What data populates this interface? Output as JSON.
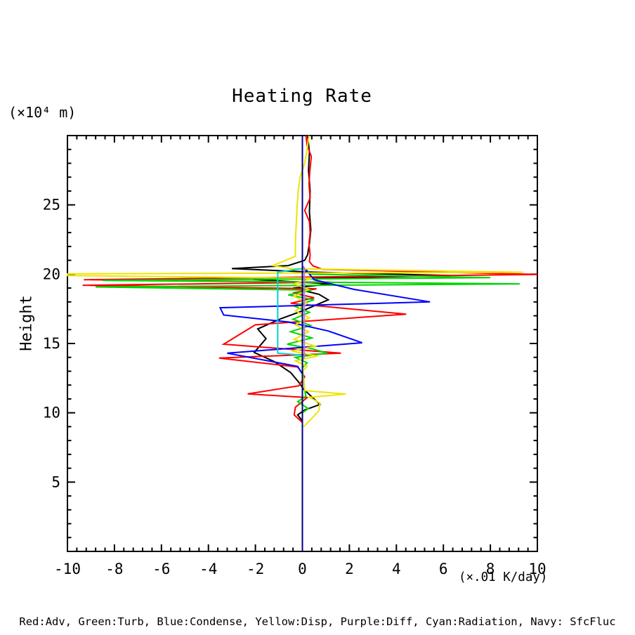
{
  "title": "Heating Rate",
  "axes": {
    "y_unit_label": "(×10⁴ m)",
    "y_axis_title": "Height",
    "x_unit_label": "(×.01 K/day)",
    "x_ticks": [
      -10,
      -8,
      -6,
      -4,
      -2,
      0,
      2,
      4,
      6,
      8,
      10
    ],
    "y_ticks": [
      5,
      10,
      15,
      20,
      25
    ],
    "x_range": [
      -10,
      10
    ],
    "y_range": [
      0,
      30
    ],
    "x_minor_step": 0.4,
    "y_minor_step": 1
  },
  "legend_caption": "Red:Adv, Green:Turb, Blue:Condense, Yellow:Disp, Purple:Diff, Cyan:Radiation, Navy: SfcFluc",
  "chart_data": {
    "type": "line",
    "title": "Heating Rate",
    "xlabel": "(×.01 K/day)",
    "ylabel": "Height (×10⁴ m)",
    "xlim": [
      -10,
      10
    ],
    "ylim": [
      0,
      30
    ],
    "grid": false,
    "legend_position": "bottom caption",
    "orientation": "vertical profile: x = heating rate value, y = height",
    "series": [
      {
        "name": "black",
        "color": "#000000",
        "points": [
          [
            0.22,
            30
          ],
          [
            0.3,
            28.8
          ],
          [
            0.26,
            27.5
          ],
          [
            0.33,
            26
          ],
          [
            0.3,
            24.5
          ],
          [
            0.36,
            23.2
          ],
          [
            0.3,
            22.2
          ],
          [
            0.22,
            21.4
          ],
          [
            0.1,
            21.0
          ],
          [
            -0.6,
            20.62
          ],
          [
            -3.0,
            20.4
          ],
          [
            0.4,
            20.15
          ],
          [
            6.3,
            19.9
          ],
          [
            -2.1,
            19.62
          ],
          [
            1.2,
            19.3
          ],
          [
            -0.4,
            19.0
          ],
          [
            0.7,
            18.55
          ],
          [
            1.1,
            18.15
          ],
          [
            0.0,
            17.35
          ],
          [
            -0.9,
            16.8
          ],
          [
            -1.9,
            16.05
          ],
          [
            -1.55,
            15.35
          ],
          [
            -2.05,
            14.35
          ],
          [
            -1.2,
            13.7
          ],
          [
            -0.5,
            12.9
          ],
          [
            -0.15,
            12.2
          ],
          [
            0.05,
            11.7
          ],
          [
            0.75,
            10.6
          ],
          [
            0.1,
            10.2
          ],
          [
            -0.2,
            9.85
          ],
          [
            0,
            9.4
          ]
        ]
      },
      {
        "name": "Adv",
        "color": "#ff0000",
        "points": [
          [
            0.15,
            30
          ],
          [
            0.2,
            29.3
          ],
          [
            0.38,
            28.5
          ],
          [
            0.32,
            27.5
          ],
          [
            0.28,
            26.5
          ],
          [
            0.33,
            25.5
          ],
          [
            0.1,
            24.6
          ],
          [
            0.3,
            23.8
          ],
          [
            0.33,
            23
          ],
          [
            0.28,
            22.2
          ],
          [
            0.33,
            21.4
          ],
          [
            0.3,
            20.9
          ],
          [
            0.45,
            20.6
          ],
          [
            0.85,
            20.35
          ],
          [
            10,
            19.98
          ],
          [
            -9.3,
            19.6
          ],
          [
            1.2,
            19.42
          ],
          [
            -9.35,
            19.2
          ],
          [
            0.6,
            18.95
          ],
          [
            -0.4,
            18.65
          ],
          [
            0.5,
            18.3
          ],
          [
            -0.5,
            17.9
          ],
          [
            4.42,
            17.12
          ],
          [
            -2.0,
            16.35
          ],
          [
            -3.35,
            14.95
          ],
          [
            1.64,
            14.3
          ],
          [
            -3.55,
            13.95
          ],
          [
            -0.2,
            13.3
          ],
          [
            0.1,
            12.6
          ],
          [
            -0.15,
            11.95
          ],
          [
            -2.33,
            11.36
          ],
          [
            0.2,
            11.1
          ],
          [
            -0.3,
            10.4
          ],
          [
            -0.35,
            9.85
          ],
          [
            0,
            9.3
          ]
        ]
      },
      {
        "name": "Turb",
        "color": "#00d400",
        "points": [
          [
            0.2,
            20.3
          ],
          [
            0.3,
            20.0
          ],
          [
            8.0,
            19.75
          ],
          [
            -8.5,
            19.55
          ],
          [
            9.25,
            19.3
          ],
          [
            -8.8,
            19.08
          ],
          [
            0.4,
            18.85
          ],
          [
            -0.6,
            18.5
          ],
          [
            0.5,
            18.15
          ],
          [
            -0.35,
            17.7
          ],
          [
            0.3,
            17.25
          ],
          [
            -0.4,
            16.75
          ],
          [
            0.35,
            16.3
          ],
          [
            -0.5,
            15.85
          ],
          [
            0.4,
            15.4
          ],
          [
            -0.65,
            14.95
          ],
          [
            0.45,
            14.6
          ],
          [
            1.05,
            14.3
          ],
          [
            -0.3,
            14.0
          ],
          [
            0.2,
            13.6
          ],
          [
            0,
            13.25
          ],
          [
            0.1,
            11.6
          ],
          [
            0.15,
            11.2
          ],
          [
            -0.2,
            10.8
          ],
          [
            0.25,
            10.3
          ],
          [
            0,
            10.0
          ]
        ]
      },
      {
        "name": "Condense",
        "color": "#0000ff",
        "points": [
          [
            0,
            20.6
          ],
          [
            0.2,
            20.2
          ],
          [
            0.5,
            19.6
          ],
          [
            2.2,
            18.9
          ],
          [
            5.43,
            18.0
          ],
          [
            -3.5,
            17.58
          ],
          [
            -3.35,
            17.05
          ],
          [
            -0.6,
            16.55
          ],
          [
            1.1,
            15.9
          ],
          [
            2.54,
            15.05
          ],
          [
            -3.2,
            14.3
          ],
          [
            -0.2,
            13.35
          ],
          [
            0,
            12.8
          ],
          [
            0,
            12.0
          ]
        ]
      },
      {
        "name": "Disp",
        "color": "#efe400",
        "points": [
          [
            0.28,
            30
          ],
          [
            0.2,
            29
          ],
          [
            0.1,
            28
          ],
          [
            -0.1,
            27
          ],
          [
            -0.18,
            26
          ],
          [
            -0.22,
            25
          ],
          [
            -0.25,
            24
          ],
          [
            -0.28,
            23
          ],
          [
            -0.3,
            22
          ],
          [
            -0.3,
            21.3
          ],
          [
            -1.25,
            20.62
          ],
          [
            -0.5,
            20.4
          ],
          [
            9.4,
            20.14
          ],
          [
            -10,
            20.02
          ],
          [
            -10,
            19.9
          ],
          [
            0.4,
            19.72
          ],
          [
            -0.35,
            19.3
          ],
          [
            0.25,
            18.9
          ],
          [
            -0.35,
            18.4
          ],
          [
            0.2,
            17.9
          ],
          [
            -0.3,
            17.35
          ],
          [
            0.3,
            16.85
          ],
          [
            -0.3,
            16.35
          ],
          [
            0.25,
            15.85
          ],
          [
            -0.35,
            15.3
          ],
          [
            0.55,
            14.8
          ],
          [
            -0.45,
            14.45
          ],
          [
            0.65,
            14.1
          ],
          [
            -0.3,
            13.75
          ],
          [
            0.2,
            13.35
          ],
          [
            0,
            13.0
          ],
          [
            0.1,
            11.6
          ],
          [
            1.85,
            11.35
          ],
          [
            0.3,
            11.12
          ],
          [
            0.75,
            10.7
          ],
          [
            0.7,
            10.15
          ],
          [
            0.35,
            9.5
          ],
          [
            0.05,
            9.0
          ]
        ]
      },
      {
        "name": "Diff",
        "color": "#b478e8",
        "points": [
          [
            0,
            20.6
          ],
          [
            0.08,
            20.4
          ],
          [
            0.08,
            14.0
          ],
          [
            0,
            13.8
          ]
        ]
      },
      {
        "name": "Radiation",
        "color": "#00d2d2",
        "points": [
          [
            0,
            20.4
          ],
          [
            -1.05,
            20.15
          ],
          [
            -1.05,
            14.3
          ],
          [
            0,
            14.15
          ]
        ]
      },
      {
        "name": "SfcFluc",
        "color": "#000082",
        "points": [
          [
            0,
            30
          ],
          [
            0,
            0
          ]
        ]
      }
    ]
  }
}
